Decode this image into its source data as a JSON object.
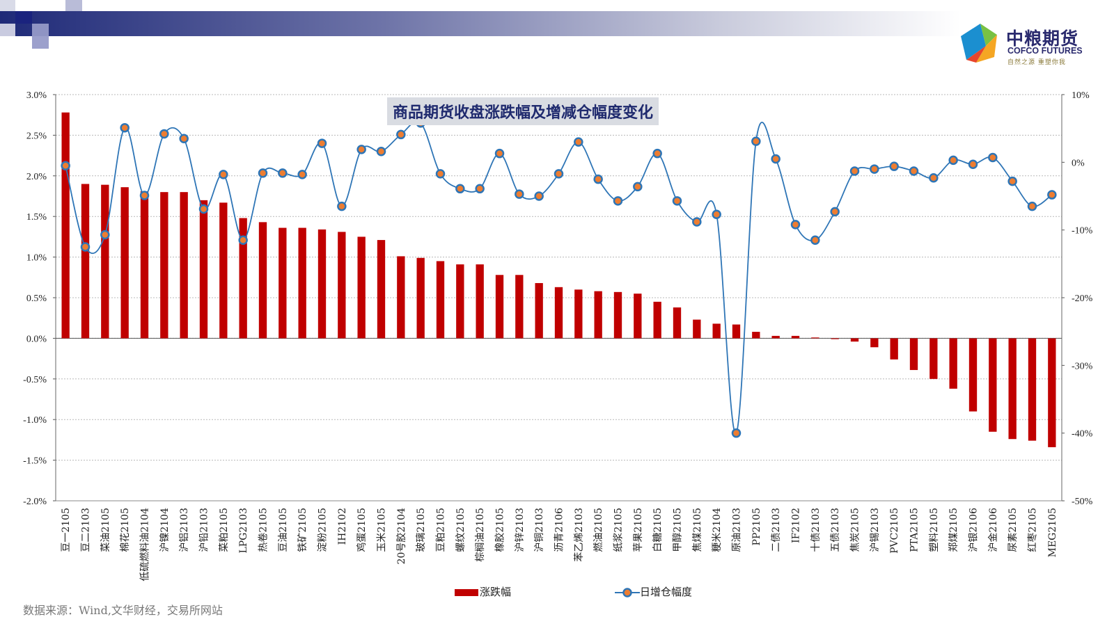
{
  "header": {
    "logo_cn": "中粮期货",
    "logo_en": "COFCO FUTURES",
    "logo_slogan": "自然之源 重塑你我"
  },
  "source_note": "数据来源：Wind,文华财经，交易所网站",
  "colors": {
    "bar": "#c00000",
    "line": "#2e75b6",
    "marker": "#ed7d31"
  },
  "chart_data": {
    "type": "bar",
    "title": "商品期货收盘涨跌幅及增减仓幅度变化",
    "categories": [
      "豆一2105",
      "豆二2103",
      "菜油2105",
      "棉花2105",
      "低硫燃料油2104",
      "沪镍2104",
      "沪铝2103",
      "沪铅2103",
      "菜粕2105",
      "LPG2103",
      "热卷2105",
      "豆油2105",
      "铁矿2105",
      "淀粉2105",
      "IH2102",
      "鸡蛋2105",
      "玉米2105",
      "20号胶2104",
      "玻璃2105",
      "豆粕2105",
      "螺纹2105",
      "棕榈油2105",
      "橡胶2105",
      "沪锌2103",
      "沪铜2103",
      "沥青2106",
      "苯乙烯2103",
      "燃油2105",
      "纸浆2105",
      "苹果2105",
      "白糖2105",
      "甲醇2105",
      "焦煤2105",
      "粳米2104",
      "原油2103",
      "PP2105",
      "二债2103",
      "IF2102",
      "十债2103",
      "五债2103",
      "焦炭2105",
      "沪锡2103",
      "PVC2105",
      "PTA2105",
      "塑料2105",
      "郑煤2105",
      "沪银2106",
      "沪金2106",
      "尿素2105",
      "红枣2105",
      "MEG2105"
    ],
    "series": [
      {
        "name": "涨跌幅",
        "axis": "left",
        "type": "bar",
        "values": [
          2.78,
          1.9,
          1.89,
          1.86,
          1.81,
          1.8,
          1.8,
          1.7,
          1.67,
          1.48,
          1.43,
          1.36,
          1.36,
          1.34,
          1.31,
          1.25,
          1.21,
          1.01,
          0.99,
          0.95,
          0.91,
          0.91,
          0.78,
          0.78,
          0.68,
          0.63,
          0.6,
          0.58,
          0.57,
          0.55,
          0.45,
          0.38,
          0.23,
          0.18,
          0.17,
          0.08,
          0.03,
          0.03,
          0.01,
          -0.01,
          -0.04,
          -0.11,
          -0.26,
          -0.39,
          -0.5,
          -0.62,
          -0.9,
          -1.15,
          -1.24,
          -1.26,
          -1.34
        ]
      },
      {
        "name": "日增仓幅度",
        "axis": "right",
        "type": "line",
        "values": [
          -0.5,
          -12.5,
          -10.7,
          5.1,
          -4.9,
          4.2,
          3.5,
          -6.9,
          -1.8,
          -11.5,
          -1.6,
          -1.6,
          -1.8,
          2.8,
          -6.5,
          1.9,
          1.6,
          4.1,
          5.8,
          -1.7,
          -3.9,
          -3.9,
          1.3,
          -4.7,
          -5.0,
          -1.7,
          3.0,
          -2.5,
          -5.7,
          -3.6,
          1.3,
          -5.7,
          -8.8,
          -7.7,
          -40.0,
          3.1,
          0.5,
          -9.2,
          -11.5,
          -7.3,
          -1.3,
          -1.0,
          -0.6,
          -1.3,
          -2.3,
          0.3,
          -0.3,
          0.7,
          -2.8,
          -6.5,
          -4.8
        ]
      }
    ],
    "left_axis": {
      "ylim": [
        -2.0,
        3.0
      ],
      "ticks": [
        "3.0%",
        "2.5%",
        "2.0%",
        "1.5%",
        "1.0%",
        "0.5%",
        "0.0%",
        "-0.5%",
        "-1.0%",
        "-1.5%",
        "-2.0%"
      ]
    },
    "right_axis": {
      "ylim": [
        -50,
        10
      ],
      "ticks": [
        "10%",
        "0%",
        "-10%",
        "-20%",
        "-30%",
        "-40%",
        "-50%"
      ]
    },
    "grid": true,
    "legend_position": "bottom-center"
  }
}
